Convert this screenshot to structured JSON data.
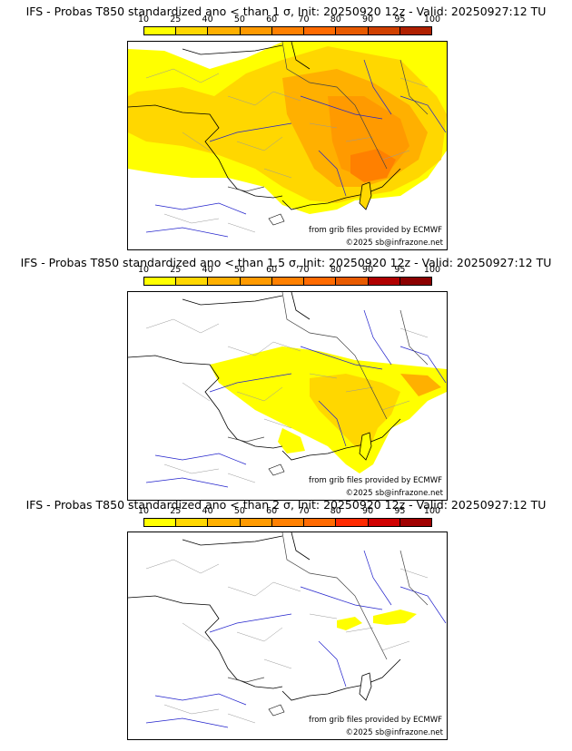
{
  "legend": {
    "labels": [
      "10",
      "25",
      "40",
      "50",
      "60",
      "70",
      "80",
      "90",
      "95",
      "100"
    ]
  },
  "credits": {
    "source": "from grib files provided by ECMWF",
    "copyright": "©2025 sb@infrazone.net"
  },
  "colors": {
    "p1": [
      "#ffff00",
      "#ffd700",
      "#ffb000",
      "#ff9a00",
      "#ff8000",
      "#ff6a00",
      "#e85a00",
      "#d04000",
      "#b02000",
      "#6b0000"
    ],
    "p2": [
      "#ffff00",
      "#ffd700",
      "#ffb000",
      "#ff9a00",
      "#ff8000",
      "#ff6a00",
      "#e85a00",
      "#b00000",
      "#8b0000",
      "#6b0000"
    ],
    "p3": [
      "#ffff00",
      "#ffd700",
      "#ffb000",
      "#ff9a00",
      "#ff8000",
      "#ff6a00",
      "#ff2a00",
      "#d00000",
      "#a00000",
      "#6b0000"
    ],
    "land_border": "#999999",
    "coast": "#000000",
    "river": "#2222cc"
  },
  "panels": [
    {
      "title": "IFS - Probas T850  standardized ano < than 1 σ, Init: 20250920 12z - Valid: 20250927:12 TU"
    },
    {
      "title": "IFS - Probas T850  standardized ano < than 1.5 σ, Init: 20250920 12z - Valid: 20250927:12 TU"
    },
    {
      "title": "IFS - Probas T850  standardized ano < than 2 σ, Init: 20250920 12z - Valid: 20250927:12 TU"
    }
  ]
}
